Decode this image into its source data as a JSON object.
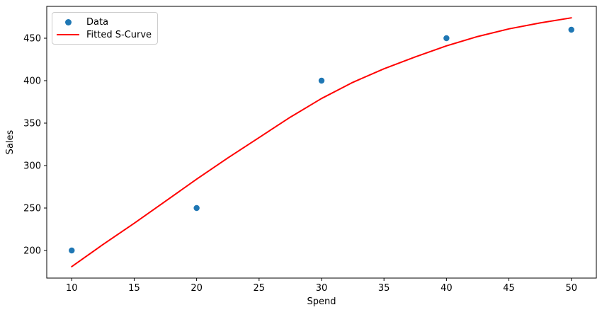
{
  "chart_data": {
    "type": "scatter",
    "title": "",
    "xlabel": "Spend",
    "ylabel": "Sales",
    "xlim": [
      8,
      52
    ],
    "ylim": [
      167.5,
      487.5
    ],
    "xticks": [
      10,
      15,
      20,
      25,
      30,
      35,
      40,
      45,
      50
    ],
    "yticks": [
      200,
      250,
      300,
      350,
      400,
      450
    ],
    "grid": false,
    "legend": {
      "location": "upper left",
      "entries": [
        {
          "label": "Data"
        },
        {
          "label": "Fitted S-Curve"
        }
      ]
    },
    "series": [
      {
        "name": "Data",
        "type": "scatter",
        "color": "#1f77b4",
        "x": [
          10,
          20,
          30,
          40,
          50
        ],
        "y": [
          200,
          250,
          400,
          450,
          460
        ]
      },
      {
        "name": "Fitted S-Curve",
        "type": "line",
        "color": "#ff0000",
        "x": [
          10,
          12.5,
          15,
          17.5,
          20,
          22.5,
          25,
          27.5,
          30,
          32.5,
          35,
          37.5,
          40,
          42.5,
          45,
          47.5,
          50
        ],
        "y": [
          181,
          207,
          232,
          258,
          284,
          309,
          333,
          357,
          379,
          398,
          414,
          428,
          441,
          452,
          461,
          468,
          474
        ]
      }
    ]
  }
}
